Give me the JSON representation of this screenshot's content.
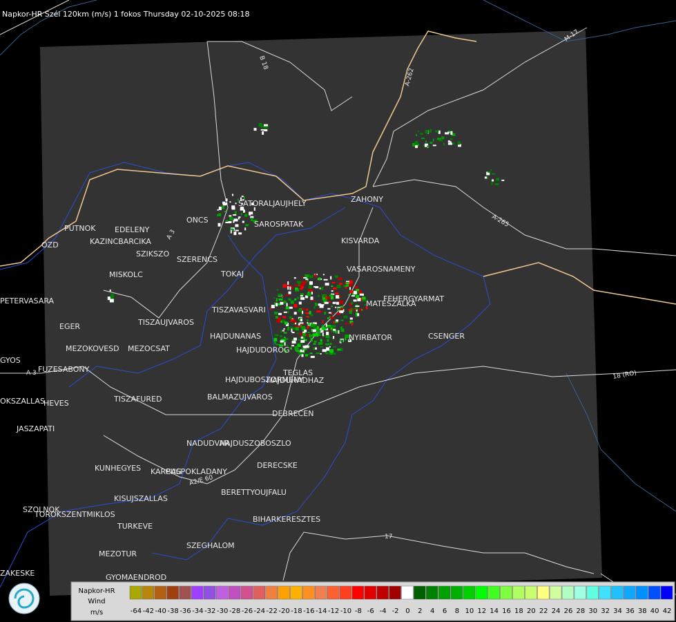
{
  "title": "Napkor-HR Szél 120km (m/s) 1 fokos Thursday 02-10-2025 08:18",
  "places": [
    "SATORALJAUJHELY",
    "SAROSPATAK",
    "ZAHONY",
    "KISVARDA",
    "VASAROSNAMENY",
    "FEHERGYARMAT",
    "MATESZALKA",
    "NYIRBATOR",
    "CSENGER",
    "TISZAVASVARI",
    "HAJDUNANAS",
    "HAJDUDOROG",
    "HAJDUBOSZORMENY",
    "TEGLAS",
    "HAJDUHADHAZ",
    "BALMAZUJVAROS",
    "DEBRECEN",
    "NADUDVAR",
    "HAJDUSZOBOSZLO",
    "DERECSKE",
    "KUNHEGYES",
    "KARCAG",
    "PUSPOKLADANY",
    "KISUJSZALLAS",
    "BERETTYOUJFALU",
    "BIHARKERESZTES",
    "TURKEVE",
    "SZEGHALOM",
    "MEZOTUR",
    "GYOMAENDROD",
    "SZOLNOK",
    "TOROKSZENTMIKLOS",
    "PUTNOK",
    "EDELENY",
    "KAZINCBARCIKA",
    "SZIKSZO",
    "SZERENCS",
    "MISKOLC",
    "TOKAJ",
    "TISZAUJVAROS",
    "EGER",
    "MEZOKOVESD",
    "MEZOCSAT",
    "PETERVASARA",
    "FUZESABONY",
    "GYOS",
    "HEVES",
    "TISZAFURED",
    "OKSZALLAS",
    "JASZAPATI",
    "ZAKESKE",
    "OZD",
    "ONCS"
  ],
  "roads": [
    "A-262",
    "M-17",
    "B 18",
    "A-265",
    "18 (RO)",
    "17",
    "A 3",
    "A2/E 60",
    "A 3"
  ],
  "legend": {
    "title": "Napkor-HR",
    "subtitle": "Wind",
    "unit": "m/s",
    "labels": [
      -64,
      -42,
      -40,
      -38,
      -36,
      -34,
      -32,
      -30,
      -28,
      -26,
      -24,
      -22,
      -20,
      -18,
      -16,
      -14,
      -12,
      -10,
      -8,
      -6,
      -4,
      -2,
      0,
      2,
      4,
      6,
      8,
      10,
      12,
      14,
      16,
      18,
      20,
      22,
      24,
      26,
      28,
      30,
      32,
      34,
      36,
      38,
      40,
      42
    ],
    "colors": [
      "#a8a800",
      "#b8860b",
      "#b06010",
      "#a04010",
      "#a05050",
      "#a040ff",
      "#9050e0",
      "#c060e0",
      "#c050c0",
      "#d05090",
      "#e06060",
      "#f08040",
      "#ffa000",
      "#ffb000",
      "#ff9020",
      "#f08050",
      "#ff6030",
      "#ff4020",
      "#ff0000",
      "#e00000",
      "#c00000",
      "#a00000",
      "#ffffff",
      "#006000",
      "#008000",
      "#00a000",
      "#00b000",
      "#00d000",
      "#00ff00",
      "#40ff20",
      "#80ff40",
      "#b0ff60",
      "#c8ff70",
      "#ffff80",
      "#d0ffa0",
      "#b0ffc0",
      "#a0ffe0",
      "#60ffe0",
      "#40e0ff",
      "#20c0ff",
      "#10a8ff",
      "#0090ff",
      "#0050ff",
      "#0000ff"
    ]
  }
}
